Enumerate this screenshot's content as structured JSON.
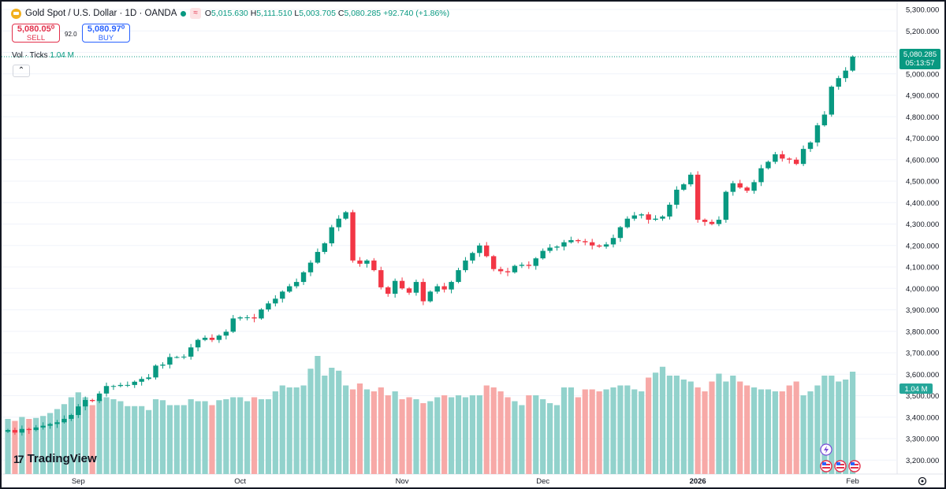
{
  "header": {
    "title": "Gold Spot / U.S. Dollar · 1D · OANDA",
    "tag": "≈",
    "open_label": "O",
    "open": "5,015.630",
    "high_label": "H",
    "high": "5,111.510",
    "low_label": "L",
    "low": "5,003.705",
    "close_label": "C",
    "close": "5,080.285",
    "change": "+92.740 (+1.86%)"
  },
  "trade": {
    "sell_price": "5,080.05⁰",
    "sell_label": "SELL",
    "spread": "92.0",
    "buy_price": "5,080.97⁰",
    "buy_label": "BUY"
  },
  "volume": {
    "label": "Vol · Ticks",
    "value": "1.04 M"
  },
  "brand": {
    "name": "TradingView"
  },
  "colors": {
    "up": "#089981",
    "down": "#f23645",
    "vol_up": "#92d2cc",
    "vol_down": "#f7a9a7"
  },
  "chart_data": {
    "type": "candlestick",
    "price_axis": {
      "min": 3120,
      "max": 5330,
      "ticks": [
        3200,
        3300,
        3400,
        3500,
        3600,
        3700,
        3800,
        3900,
        4000,
        4100,
        4200,
        4300,
        4400,
        4500,
        4600,
        4700,
        4800,
        4900,
        5000,
        5100,
        5200,
        5300
      ],
      "tick_labels": [
        "3,200.000",
        "3,300.000",
        "3,400.000",
        "3,500.000",
        "3,600.000",
        "3,700.000",
        "3,800.000",
        "3,900.000",
        "4,000.000",
        "4,100.000",
        "4,200.000",
        "4,300.000",
        "4,400.000",
        "4,500.000",
        "4,600.000",
        "4,700.000",
        "4,800.000",
        "4,900.000",
        "5,000.000",
        "5,100.000",
        "5,200.000",
        "5,300.000"
      ]
    },
    "last_price": "5,080.285",
    "countdown": "05:13:57",
    "volume_last_label": "1.04 M",
    "x_labels": [
      {
        "label": "Sep",
        "bar": 10
      },
      {
        "label": "Oct",
        "bar": 33
      },
      {
        "label": "Nov",
        "bar": 56
      },
      {
        "label": "Dec",
        "bar": 76
      },
      {
        "label": "2026",
        "bar": 98
      },
      {
        "label": "Feb",
        "bar": 120
      }
    ],
    "closes": [
      3340,
      3328,
      3345,
      3340,
      3352,
      3360,
      3368,
      3376,
      3392,
      3410,
      3450,
      3480,
      3475,
      3510,
      3545,
      3545,
      3550,
      3550,
      3565,
      3578,
      3585,
      3640,
      3645,
      3680,
      3680,
      3682,
      3725,
      3760,
      3770,
      3760,
      3780,
      3798,
      3860,
      3865,
      3865,
      3860,
      3902,
      3930,
      3952,
      3985,
      4010,
      4030,
      4075,
      4120,
      4170,
      4210,
      4285,
      4325,
      4355,
      4130,
      4115,
      4130,
      4085,
      4005,
      3975,
      4035,
      4000,
      3980,
      4030,
      3940,
      3985,
      4010,
      3995,
      4030,
      4085,
      4130,
      4165,
      4200,
      4150,
      4090,
      4080,
      4075,
      4105,
      4110,
      4105,
      4140,
      4175,
      4190,
      4195,
      4215,
      4225,
      4220,
      4215,
      4200,
      4195,
      4205,
      4235,
      4285,
      4325,
      4340,
      4345,
      4320,
      4325,
      4335,
      4390,
      4460,
      4485,
      4530,
      4320,
      4310,
      4300,
      4320,
      4450,
      4490,
      4470,
      4455,
      4495,
      4560,
      4590,
      4625,
      4605,
      4600,
      4580,
      4650,
      4680,
      4760,
      4810,
      4940,
      4980,
      5015,
      5080
    ],
    "volumes": [
      560,
      540,
      580,
      560,
      570,
      590,
      620,
      660,
      710,
      780,
      830,
      780,
      700,
      760,
      780,
      760,
      740,
      690,
      690,
      690,
      650,
      760,
      750,
      700,
      700,
      700,
      760,
      740,
      740,
      700,
      750,
      760,
      780,
      780,
      740,
      780,
      760,
      760,
      840,
      900,
      880,
      880,
      900,
      1070,
      1200,
      1000,
      1080,
      1050,
      900,
      860,
      920,
      860,
      840,
      880,
      800,
      840,
      760,
      780,
      760,
      720,
      740,
      780,
      800,
      780,
      800,
      780,
      800,
      800,
      900,
      880,
      840,
      780,
      740,
      700,
      800,
      800,
      760,
      720,
      700,
      880,
      880,
      780,
      860,
      860,
      840,
      860,
      880,
      900,
      900,
      860,
      840,
      980,
      1030,
      1090,
      1000,
      1000,
      960,
      940,
      880,
      840,
      940,
      1020,
      940,
      1000,
      940,
      900,
      880,
      860,
      860,
      840,
      840,
      900,
      940,
      800,
      840,
      900,
      1000,
      1000,
      940,
      960,
      1040
    ]
  }
}
